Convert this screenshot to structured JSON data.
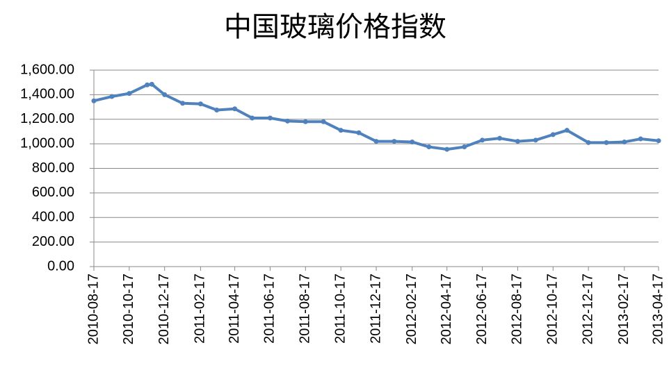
{
  "chart_data": {
    "type": "line",
    "title": "中国玻璃价格指数",
    "x": [
      "2010-08-17",
      "2010-09-17",
      "2010-10-17",
      "2010-11-17",
      "2010-11-25",
      "2010-12-17",
      "2011-01-17",
      "2011-02-17",
      "2011-03-17",
      "2011-04-17",
      "2011-05-17",
      "2011-06-17",
      "2011-07-17",
      "2011-08-17",
      "2011-09-17",
      "2011-10-17",
      "2011-11-17",
      "2011-12-17",
      "2012-01-17",
      "2012-02-17",
      "2012-03-17",
      "2012-04-17",
      "2012-05-17",
      "2012-06-17",
      "2012-07-17",
      "2012-08-17",
      "2012-09-17",
      "2012-10-17",
      "2012-11-10",
      "2012-12-17",
      "2013-01-17",
      "2013-02-17",
      "2013-03-17",
      "2013-04-17"
    ],
    "series": [
      {
        "name": "中国玻璃价格指数",
        "color": "#4f81bd",
        "values": [
          1350,
          1385,
          1410,
          1480,
          1485,
          1400,
          1330,
          1325,
          1275,
          1285,
          1210,
          1210,
          1185,
          1180,
          1180,
          1110,
          1090,
          1020,
          1020,
          1015,
          975,
          955,
          975,
          1030,
          1045,
          1020,
          1030,
          1075,
          1110,
          1010,
          1010,
          1015,
          1040,
          1025
        ]
      }
    ],
    "xticks": [
      "2010-08-17",
      "2010-10-17",
      "2010-12-17",
      "2011-02-17",
      "2011-04-17",
      "2011-06-17",
      "2011-08-17",
      "2011-10-17",
      "2011-12-17",
      "2012-02-17",
      "2012-04-17",
      "2012-06-17",
      "2012-08-17",
      "2012-10-17",
      "2012-12-17",
      "2013-02-17",
      "2013-04-17"
    ],
    "xlim": [
      "2010-08-17",
      "2013-04-17"
    ],
    "ylim": [
      0,
      1600
    ],
    "yticks": [
      {
        "value": 0,
        "label": "0.00"
      },
      {
        "value": 200,
        "label": "200.00"
      },
      {
        "value": 400,
        "label": "400.00"
      },
      {
        "value": 600,
        "label": "600.00"
      },
      {
        "value": 800,
        "label": "800.00"
      },
      {
        "value": 1000,
        "label": "1,000.00"
      },
      {
        "value": 1200,
        "label": "1,200.00"
      },
      {
        "value": 1400,
        "label": "1,400.00"
      },
      {
        "value": 1600,
        "label": "1,600.00"
      }
    ],
    "grid": true
  }
}
